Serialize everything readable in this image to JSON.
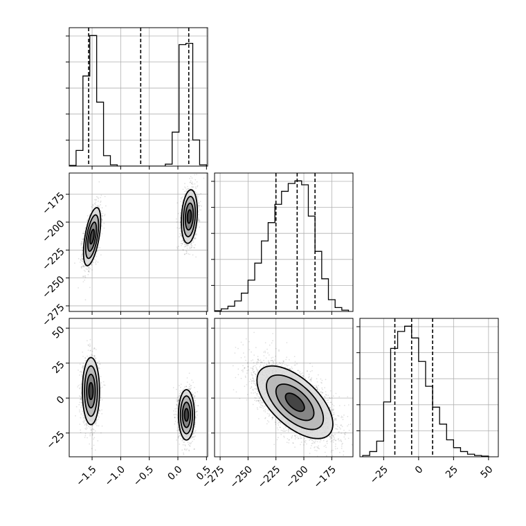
{
  "chart_data": {
    "type": "corner",
    "parameters": [
      {
        "range": [
          -1.9,
          0.52
        ],
        "ticks": [
          -1.5,
          -1.0,
          -0.5,
          0.0,
          0.5
        ],
        "tick_labels": [
          "−1.5",
          "−1.0",
          "−0.5",
          "0.0",
          "0.5"
        ]
      },
      {
        "range": [
          -280,
          -156
        ],
        "ticks": [
          -275,
          -250,
          -225,
          -200,
          -175
        ],
        "tick_labels": [
          "−275",
          "−250",
          "−225",
          "−200",
          "−175"
        ]
      },
      {
        "range": [
          -42,
          57
        ],
        "ticks": [
          -25,
          0,
          25,
          50
        ],
        "tick_labels": [
          "−25",
          "0",
          "25",
          "50"
        ]
      }
    ],
    "histograms": [
      {
        "param": 0,
        "edges": [
          -1.9,
          -1.78,
          -1.66,
          -1.54,
          -1.42,
          -1.3,
          -1.18,
          -1.06,
          -0.94,
          -0.82,
          -0.7,
          -0.58,
          -0.46,
          -0.34,
          -0.22,
          -0.1,
          0.02,
          0.14,
          0.26,
          0.38,
          0.5
        ],
        "counts": [
          0.005,
          0.12,
          0.69,
          1.0,
          0.49,
          0.08,
          0.01,
          0,
          0,
          0,
          0,
          0,
          0,
          0,
          0.015,
          0.26,
          0.93,
          0.94,
          0.2,
          0.01
        ],
        "quantiles": [
          -1.56,
          -0.65,
          0.19
        ]
      },
      {
        "param": 1,
        "edges": [
          -280,
          -274,
          -268,
          -262,
          -256,
          -250,
          -244,
          -238,
          -232,
          -226,
          -220,
          -214,
          -208,
          -202,
          -196,
          -190,
          -184,
          -178,
          -172,
          -166,
          -160
        ],
        "counts": [
          0.005,
          0.02,
          0.04,
          0.08,
          0.14,
          0.24,
          0.37,
          0.54,
          0.68,
          0.82,
          0.92,
          0.98,
          1.0,
          0.97,
          0.73,
          0.46,
          0.25,
          0.09,
          0.03,
          0.01
        ],
        "quantiles": [
          -225,
          -206,
          -190
        ]
      },
      {
        "param": 2,
        "edges": [
          -40,
          -35,
          -30,
          -25,
          -20,
          -15,
          -10,
          -5,
          0,
          5,
          10,
          15,
          20,
          25,
          30,
          35,
          40,
          45,
          50
        ],
        "counts": [
          0.01,
          0.04,
          0.12,
          0.42,
          0.83,
          0.96,
          1.0,
          0.91,
          0.73,
          0.54,
          0.38,
          0.25,
          0.13,
          0.07,
          0.04,
          0.02,
          0.01,
          0.005
        ],
        "quantiles": [
          -17,
          -5,
          10
        ]
      }
    ],
    "clusters": [
      {
        "panel": "1-0",
        "center": [
          -1.5,
          -213
        ],
        "sigma": [
          0.075,
          13
        ],
        "rho": 0.55,
        "n": 1500
      },
      {
        "panel": "1-0",
        "center": [
          0.2,
          -195
        ],
        "sigma": [
          0.07,
          12
        ],
        "rho": 0.2,
        "n": 1500
      },
      {
        "panel": "2-0",
        "center": [
          -1.52,
          5
        ],
        "sigma": [
          0.075,
          12
        ],
        "rho": 0.0,
        "n": 1400
      },
      {
        "panel": "2-0",
        "center": [
          0.15,
          -12
        ],
        "sigma": [
          0.07,
          9
        ],
        "rho": 0.0,
        "n": 1400
      },
      {
        "panel": "2-1",
        "center": [
          -208,
          -3
        ],
        "sigma": [
          17,
          13
        ],
        "rho": -0.6,
        "n": 4500
      }
    ],
    "contour_levels_sigma": [
      0.5,
      1.0,
      1.5,
      2.0
    ]
  }
}
